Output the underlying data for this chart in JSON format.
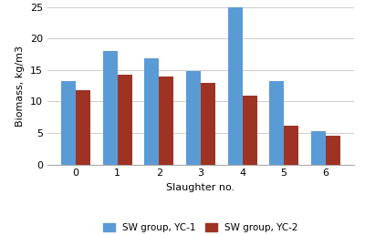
{
  "categories": [
    0,
    1,
    2,
    3,
    4,
    5,
    6
  ],
  "yc1_values": [
    13.2,
    18.0,
    16.8,
    14.9,
    24.9,
    13.2,
    5.3
  ],
  "yc2_values": [
    11.8,
    14.2,
    13.9,
    13.0,
    11.0,
    6.1,
    4.6
  ],
  "yc1_color": "#5B9BD5",
  "yc2_color": "#9E3323",
  "xlabel": "Slaughter no.",
  "ylabel": "Biomass, kg/m3",
  "ylim": [
    0,
    25
  ],
  "yticks": [
    0,
    5,
    10,
    15,
    20,
    25
  ],
  "legend_yc1": "SW group, YC-1",
  "legend_yc2": "SW group, YC-2",
  "bar_width": 0.35,
  "background_color": "#ffffff",
  "grid_color": "#d0d0d0"
}
